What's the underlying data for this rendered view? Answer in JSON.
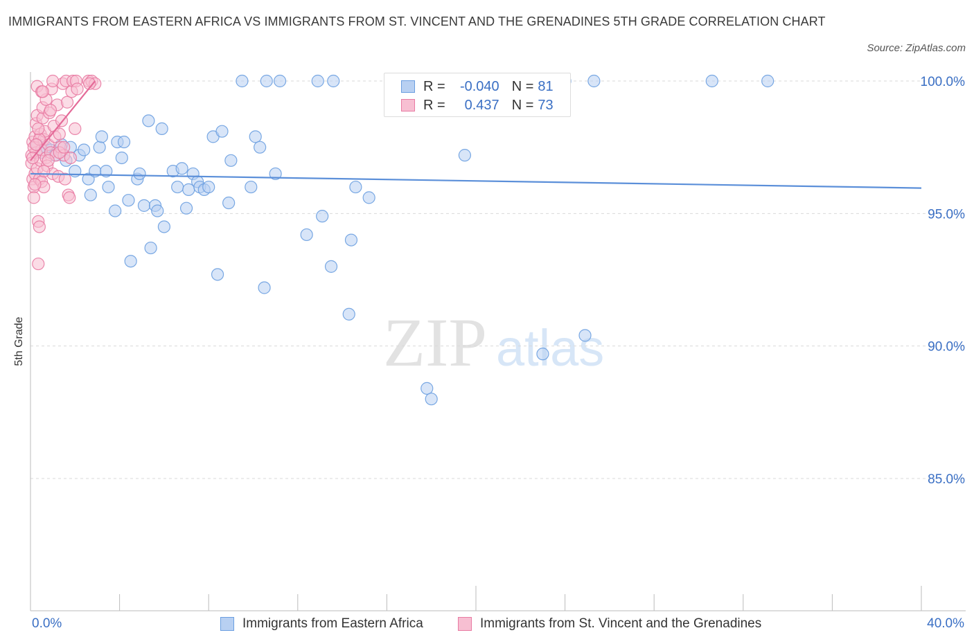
{
  "header": {
    "title": "IMMIGRANTS FROM EASTERN AFRICA VS IMMIGRANTS FROM ST. VINCENT AND THE GRENADINES 5TH GRADE CORRELATION CHART",
    "source": "Source: ZipAtlas.com"
  },
  "watermark": {
    "zip": "ZIP",
    "atlas": "atlas"
  },
  "legend": {
    "rows": [
      {
        "r_label": "R =",
        "r_value": "-0.040",
        "n_label": "N =",
        "n_value": "81",
        "color": "#6a9ee0",
        "fill": "#b8d0f2"
      },
      {
        "r_label": "R =",
        "r_value": "0.437",
        "n_label": "N =",
        "n_value": "73",
        "color": "#e87aa2",
        "fill": "#f7bfd2"
      }
    ]
  },
  "chart_data": {
    "type": "scatter",
    "title": "IMMIGRANTS FROM EASTERN AFRICA VS IMMIGRANTS FROM ST. VINCENT AND THE GRENADINES 5TH GRADE CORRELATION CHART",
    "xlabel": "",
    "ylabel": "5th Grade",
    "xlim": [
      0,
      40
    ],
    "ylim": [
      80.0,
      100.6
    ],
    "x_tick_labels": [
      "0.0%",
      "40.0%"
    ],
    "y_tick_values": [
      85,
      90,
      95,
      100
    ],
    "y_tick_labels": [
      "85.0%",
      "90.0%",
      "95.0%",
      "100.0%"
    ],
    "grid": true,
    "legend_position": "bottom",
    "colors": {
      "blue": "#5b8fd9",
      "blue_fill": "#b8d0f2",
      "pink": "#e46a98",
      "pink_fill": "#f7bfd2",
      "axis_text": "#3a6fc4"
    },
    "series": [
      {
        "name": "Immigrants from Eastern Africa",
        "color": "#6a9ee0",
        "trend": {
          "x": [
            0,
            40
          ],
          "y": [
            96.5,
            95.96
          ]
        },
        "points": [
          [
            0.3,
            97.6
          ],
          [
            0.5,
            97.3
          ],
          [
            0.7,
            97.5
          ],
          [
            0.9,
            97.4
          ],
          [
            1.1,
            97.2
          ],
          [
            1.4,
            97.6
          ],
          [
            1.6,
            97.0
          ],
          [
            1.8,
            97.5
          ],
          [
            2.0,
            96.6
          ],
          [
            2.2,
            97.2
          ],
          [
            2.4,
            97.4
          ],
          [
            2.6,
            96.3
          ],
          [
            2.7,
            95.7
          ],
          [
            2.9,
            96.6
          ],
          [
            3.1,
            97.5
          ],
          [
            3.2,
            97.9
          ],
          [
            3.4,
            96.6
          ],
          [
            3.5,
            96.0
          ],
          [
            3.8,
            95.1
          ],
          [
            3.9,
            97.7
          ],
          [
            4.1,
            97.1
          ],
          [
            4.2,
            97.7
          ],
          [
            4.4,
            95.5
          ],
          [
            4.5,
            93.2
          ],
          [
            4.8,
            96.3
          ],
          [
            4.9,
            96.5
          ],
          [
            5.1,
            95.3
          ],
          [
            5.3,
            98.5
          ],
          [
            5.4,
            93.7
          ],
          [
            5.6,
            95.3
          ],
          [
            5.7,
            95.1
          ],
          [
            5.9,
            98.2
          ],
          [
            6.0,
            94.5
          ],
          [
            6.4,
            96.6
          ],
          [
            6.6,
            96.0
          ],
          [
            6.8,
            96.7
          ],
          [
            7.0,
            95.2
          ],
          [
            7.1,
            95.9
          ],
          [
            7.3,
            96.5
          ],
          [
            7.5,
            96.2
          ],
          [
            7.6,
            96.0
          ],
          [
            7.8,
            95.9
          ],
          [
            8.0,
            96.0
          ],
          [
            8.2,
            97.9
          ],
          [
            8.4,
            92.7
          ],
          [
            8.6,
            98.1
          ],
          [
            8.9,
            95.4
          ],
          [
            9.0,
            97.0
          ],
          [
            9.5,
            100.0
          ],
          [
            9.9,
            96.0
          ],
          [
            10.1,
            97.9
          ],
          [
            10.3,
            97.5
          ],
          [
            10.5,
            92.2
          ],
          [
            10.6,
            100.0
          ],
          [
            11.0,
            96.5
          ],
          [
            11.2,
            100.0
          ],
          [
            12.4,
            94.2
          ],
          [
            12.9,
            100.0
          ],
          [
            13.1,
            94.9
          ],
          [
            13.5,
            93.0
          ],
          [
            13.6,
            100.0
          ],
          [
            14.3,
            91.2
          ],
          [
            14.4,
            94.0
          ],
          [
            14.6,
            96.0
          ],
          [
            15.2,
            95.6
          ],
          [
            17.8,
            88.4
          ],
          [
            18.0,
            88.0
          ],
          [
            19.5,
            97.2
          ],
          [
            23.0,
            89.7
          ],
          [
            24.0,
            100.0
          ],
          [
            24.9,
            90.4
          ],
          [
            25.3,
            100.0
          ],
          [
            30.6,
            100.0
          ],
          [
            33.1,
            100.0
          ],
          [
            17.2,
            100.0
          ]
        ]
      },
      {
        "name": "Immigrants from St. Vincent and the Grenadines",
        "color": "#e87aa2",
        "trend": {
          "x": [
            0.0,
            2.9
          ],
          "y": [
            97.0,
            100.0
          ]
        },
        "points": [
          [
            0.05,
            97.2
          ],
          [
            0.05,
            96.9
          ],
          [
            0.1,
            96.3
          ],
          [
            0.1,
            97.7
          ],
          [
            0.15,
            96.0
          ],
          [
            0.15,
            95.6
          ],
          [
            0.2,
            96.5
          ],
          [
            0.2,
            97.9
          ],
          [
            0.25,
            98.4
          ],
          [
            0.25,
            97.3
          ],
          [
            0.3,
            96.7
          ],
          [
            0.3,
            98.7
          ],
          [
            0.35,
            94.7
          ],
          [
            0.35,
            93.1
          ],
          [
            0.4,
            94.5
          ],
          [
            0.4,
            96.3
          ],
          [
            0.45,
            97.0
          ],
          [
            0.45,
            98.0
          ],
          [
            0.5,
            97.4
          ],
          [
            0.5,
            96.2
          ],
          [
            0.55,
            98.6
          ],
          [
            0.55,
            99.0
          ],
          [
            0.6,
            96.0
          ],
          [
            0.6,
            97.8
          ],
          [
            0.65,
            98.1
          ],
          [
            0.7,
            97.1
          ],
          [
            0.7,
            99.3
          ],
          [
            0.75,
            96.8
          ],
          [
            0.8,
            97.6
          ],
          [
            0.85,
            98.8
          ],
          [
            0.9,
            97.3
          ],
          [
            0.95,
            99.7
          ],
          [
            1.0,
            96.5
          ],
          [
            1.05,
            98.3
          ],
          [
            1.1,
            97.9
          ],
          [
            1.15,
            97.2
          ],
          [
            1.2,
            99.1
          ],
          [
            1.25,
            96.4
          ],
          [
            1.3,
            98.0
          ],
          [
            1.35,
            97.5
          ],
          [
            1.4,
            98.5
          ],
          [
            1.45,
            99.9
          ],
          [
            1.5,
            97.2
          ],
          [
            1.55,
            96.3
          ],
          [
            1.6,
            100.0
          ],
          [
            1.65,
            99.2
          ],
          [
            1.7,
            95.7
          ],
          [
            1.75,
            95.6
          ],
          [
            1.8,
            97.1
          ],
          [
            1.85,
            99.6
          ],
          [
            1.9,
            100.0
          ],
          [
            2.0,
            98.2
          ],
          [
            2.05,
            100.0
          ],
          [
            2.1,
            99.7
          ],
          [
            2.6,
            100.0
          ],
          [
            2.75,
            100.0
          ],
          [
            2.9,
            99.9
          ],
          [
            0.3,
            99.8
          ],
          [
            0.5,
            99.6
          ],
          [
            1.0,
            100.0
          ],
          [
            0.15,
            97.5
          ],
          [
            0.2,
            96.1
          ],
          [
            0.1,
            97.1
          ],
          [
            0.4,
            97.8
          ],
          [
            0.35,
            98.2
          ],
          [
            0.6,
            96.6
          ],
          [
            0.8,
            97.0
          ],
          [
            1.3,
            97.3
          ],
          [
            1.5,
            97.5
          ],
          [
            0.25,
            97.6
          ],
          [
            0.55,
            99.6
          ],
          [
            0.9,
            98.9
          ],
          [
            2.65,
            99.9
          ]
        ]
      }
    ]
  },
  "bottom_legend": {
    "items": [
      {
        "label": "Immigrants from Eastern Africa"
      },
      {
        "label": "Immigrants from St. Vincent and the Grenadines"
      }
    ]
  },
  "axis": {
    "ylabel": "5th Grade",
    "x_min_label": "0.0%",
    "x_max_label": "40.0%"
  }
}
